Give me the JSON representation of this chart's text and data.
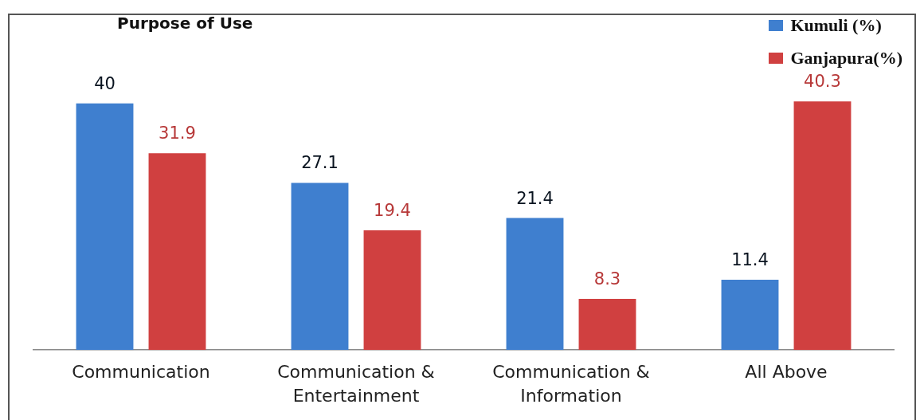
{
  "chart_data": {
    "type": "bar",
    "title": "Purpose of Use",
    "categories": [
      "Communication",
      "Communication & Entertainment",
      "Communication & Information",
      "All Above"
    ],
    "series": [
      {
        "name": "Kumuli (%)",
        "color": "#3f7fcf",
        "values": [
          40,
          27.1,
          21.4,
          11.4
        ]
      },
      {
        "name": "Ganjapura(%)",
        "color": "#d04040",
        "values": [
          31.9,
          19.4,
          8.3,
          40.3
        ]
      }
    ],
    "data_labels": true,
    "legend": "top right",
    "grid": false,
    "tick_labels": "x"
  }
}
